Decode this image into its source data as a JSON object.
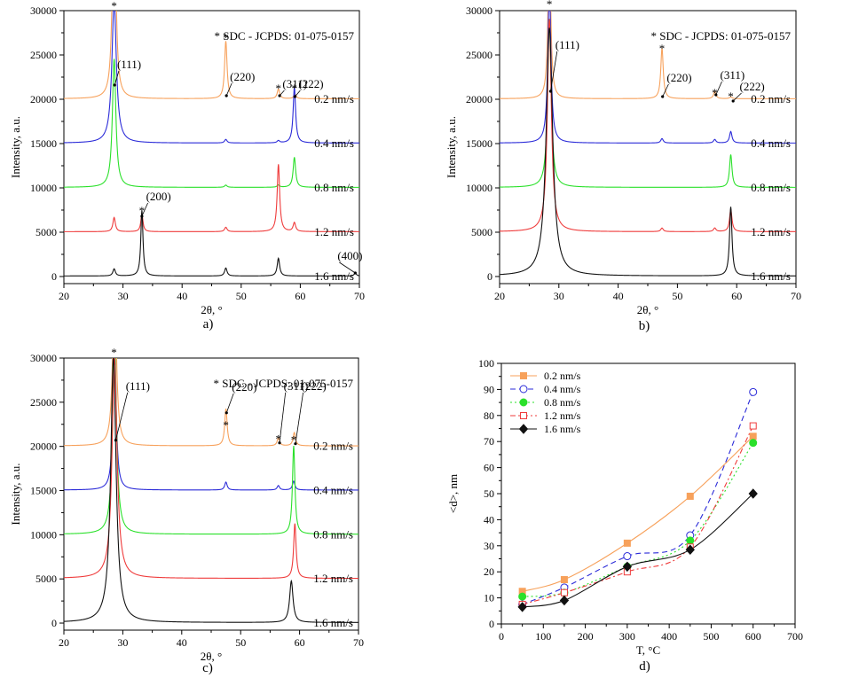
{
  "figure": {
    "panels": [
      "a)",
      "b)",
      "c)",
      "d)"
    ]
  },
  "chart_data": [
    {
      "panel": "a)",
      "type": "line",
      "xlabel": "2θ, °",
      "ylabel": "Intensity, a.u.",
      "xlim": [
        20,
        70
      ],
      "ylim": [
        -800,
        30000
      ],
      "xticks": [
        20,
        30,
        40,
        50,
        60,
        70
      ],
      "yticks": [
        0,
        5000,
        10000,
        15000,
        20000,
        25000,
        30000
      ],
      "annotation": "* SDC - JCPDS: 01-075-0157",
      "labels": [
        {
          "text": "(111)",
          "at": [
            29.0,
            23500
          ],
          "tip": [
            28.6,
            21600
          ]
        },
        {
          "text": "(220)",
          "at": [
            48.1,
            22100
          ],
          "tip": [
            47.5,
            20400
          ]
        },
        {
          "text": "(311)",
          "at": [
            57.0,
            21300
          ],
          "tip": [
            56.5,
            20400
          ]
        },
        {
          "text": "(222)",
          "at": [
            59.7,
            21300
          ],
          "tip": [
            59.1,
            20300
          ]
        },
        {
          "text": "(200)",
          "at": [
            33.9,
            8600
          ],
          "tip": [
            33.2,
            6800
          ]
        },
        {
          "text": "(400)",
          "at": [
            66.3,
            1900
          ],
          "tip": [
            69.3,
            400
          ]
        }
      ],
      "stars": [
        [
          28.5,
          30500
        ],
        [
          47.4,
          26900
        ],
        [
          56.3,
          21200
        ],
        [
          59.0,
          21200
        ],
        [
          33.2,
          7400
        ]
      ],
      "series": [
        {
          "name": "0.2 nm/s",
          "color": "#f7a15b",
          "offset": 20000,
          "peaks": [
            [
              28.5,
              28000,
              0.3
            ],
            [
              47.4,
              6500,
              0.25
            ],
            [
              56.3,
              1100,
              0.25
            ],
            [
              59.1,
              500,
              0.25
            ]
          ]
        },
        {
          "name": "0.4 nm/s",
          "color": "#2a2ad8",
          "offset": 15000,
          "peaks": [
            [
              28.5,
              16000,
              0.45
            ],
            [
              47.4,
              400,
              0.25
            ],
            [
              56.3,
              250,
              0.25
            ],
            [
              59.0,
              6300,
              0.25
            ]
          ]
        },
        {
          "name": "0.8 nm/s",
          "color": "#2ae02a",
          "offset": 10000,
          "peaks": [
            [
              28.5,
              14500,
              0.35
            ],
            [
              47.4,
              250,
              0.25
            ],
            [
              56.3,
              250,
              0.25
            ],
            [
              59.0,
              3400,
              0.25
            ]
          ]
        },
        {
          "name": "1.2 nm/s",
          "color": "#ef3b3b",
          "offset": 5000,
          "peaks": [
            [
              28.5,
              1600,
              0.25
            ],
            [
              33.2,
              2000,
              0.22
            ],
            [
              47.4,
              500,
              0.25
            ],
            [
              56.3,
              7600,
              0.25
            ],
            [
              59.0,
              1000,
              0.25
            ]
          ]
        },
        {
          "name": "1.6 nm/s",
          "color": "#111111",
          "offset": 0,
          "peaks": [
            [
              28.5,
              800,
              0.25
            ],
            [
              33.2,
              7400,
              0.22
            ],
            [
              47.4,
              900,
              0.25
            ],
            [
              56.3,
              2000,
              0.25
            ],
            [
              69.3,
              300,
              0.25
            ]
          ]
        }
      ]
    },
    {
      "panel": "b)",
      "type": "line",
      "xlabel": "2θ, °",
      "ylabel": "Intensity, a.u.",
      "xlim": [
        20,
        70
      ],
      "ylim": [
        -800,
        30000
      ],
      "xticks": [
        20,
        30,
        40,
        50,
        60,
        70
      ],
      "yticks": [
        0,
        5000,
        10000,
        15000,
        20000,
        25000,
        30000
      ],
      "annotation": "* SDC - JCPDS: 01-075-0157",
      "labels": [
        {
          "text": "(111)",
          "at": [
            29.4,
            25700
          ],
          "tip": [
            28.6,
            20900
          ]
        },
        {
          "text": "(220)",
          "at": [
            48.2,
            22000
          ],
          "tip": [
            47.5,
            20300
          ]
        },
        {
          "text": "(311)",
          "at": [
            57.2,
            22300
          ],
          "tip": [
            56.5,
            20500
          ]
        },
        {
          "text": "(222)",
          "at": [
            60.5,
            21000
          ],
          "tip": [
            59.4,
            19800
          ]
        }
      ],
      "stars": [
        [
          28.4,
          30700
        ],
        [
          47.4,
          25700
        ],
        [
          56.3,
          20700
        ],
        [
          59.0,
          20300
        ]
      ],
      "series": [
        {
          "name": "0.2 nm/s",
          "color": "#f7a15b",
          "offset": 20000,
          "peaks": [
            [
              28.4,
              20000,
              0.25
            ],
            [
              47.4,
              5700,
              0.25
            ],
            [
              56.3,
              800,
              0.25
            ],
            [
              59.0,
              200,
              0.25
            ]
          ]
        },
        {
          "name": "0.4 nm/s",
          "color": "#2a2ad8",
          "offset": 15000,
          "peaks": [
            [
              28.4,
              18000,
              0.3
            ],
            [
              47.4,
              500,
              0.25
            ],
            [
              56.3,
              400,
              0.25
            ],
            [
              59.0,
              1300,
              0.25
            ]
          ]
        },
        {
          "name": "0.8 nm/s",
          "color": "#2ae02a",
          "offset": 10000,
          "peaks": [
            [
              28.4,
              19000,
              0.35
            ],
            [
              59.0,
              3700,
              0.25
            ]
          ]
        },
        {
          "name": "1.2 nm/s",
          "color": "#ef3b3b",
          "offset": 5000,
          "peaks": [
            [
              28.4,
              24000,
              0.4
            ],
            [
              47.4,
              400,
              0.25
            ],
            [
              56.3,
              400,
              0.25
            ],
            [
              59.0,
              2500,
              0.25
            ]
          ]
        },
        {
          "name": "1.6 nm/s",
          "color": "#111111",
          "offset": 0,
          "peaks": [
            [
              28.4,
              28000,
              0.65
            ],
            [
              59.0,
              7800,
              0.25
            ]
          ]
        }
      ]
    },
    {
      "panel": "c)",
      "type": "line",
      "xlabel": "2θ, °",
      "ylabel": "Intensity, a.u.",
      "xlim": [
        20,
        70
      ],
      "ylim": [
        -800,
        30000
      ],
      "xticks": [
        20,
        30,
        40,
        50,
        60,
        70
      ],
      "yticks": [
        0,
        5000,
        10000,
        15000,
        20000,
        25000,
        30000
      ],
      "annotation": "* SDC - JCPDS: 01-075-0157",
      "labels": [
        {
          "text": "(111)",
          "at": [
            30.5,
            26400
          ],
          "tip": [
            28.8,
            20700
          ]
        },
        {
          "text": "(220)",
          "at": [
            48.5,
            26300
          ],
          "tip": [
            47.6,
            23800
          ]
        },
        {
          "text": "(311)",
          "at": [
            57.3,
            26400
          ],
          "tip": [
            56.6,
            20400
          ]
        },
        {
          "text": "(222)",
          "at": [
            60.3,
            26400
          ],
          "tip": [
            59.3,
            20300
          ]
        }
      ],
      "stars": [
        [
          28.5,
          30600
        ],
        [
          47.5,
          22400
        ],
        [
          56.4,
          20800
        ],
        [
          59.0,
          20700
        ]
      ],
      "series": [
        {
          "name": "0.2 nm/s",
          "color": "#f7a15b",
          "offset": 20000,
          "peaks": [
            [
              28.6,
              20000,
              0.35
            ],
            [
              47.5,
              4200,
              0.25
            ],
            [
              56.4,
              900,
              0.25
            ],
            [
              59.1,
              1500,
              0.25
            ]
          ]
        },
        {
          "name": "0.4 nm/s",
          "color": "#2a2ad8",
          "offset": 15000,
          "peaks": [
            [
              28.6,
              18000,
              0.3
            ],
            [
              47.5,
              900,
              0.25
            ],
            [
              56.4,
              500,
              0.25
            ],
            [
              59.0,
              1000,
              0.25
            ]
          ]
        },
        {
          "name": "0.8 nm/s",
          "color": "#2ae02a",
          "offset": 10000,
          "peaks": [
            [
              28.6,
              22000,
              0.4
            ],
            [
              59.0,
              10000,
              0.25
            ]
          ]
        },
        {
          "name": "1.2 nm/s",
          "color": "#ef3b3b",
          "offset": 5000,
          "peaks": [
            [
              28.6,
              25000,
              0.5
            ],
            [
              59.2,
              6200,
              0.25
            ]
          ]
        },
        {
          "name": "1.6 nm/s",
          "color": "#111111",
          "offset": 0,
          "peaks": [
            [
              28.4,
              30000,
              0.55
            ],
            [
              58.6,
              4700,
              0.35
            ]
          ]
        }
      ]
    },
    {
      "panel": "d)",
      "type": "line",
      "xlabel": "T, °C",
      "ylabel": "<d>, nm",
      "xlim": [
        0,
        700
      ],
      "ylim": [
        0,
        100
      ],
      "xticks": [
        0,
        100,
        200,
        300,
        400,
        500,
        600,
        700
      ],
      "yticks": [
        0,
        10,
        20,
        30,
        40,
        50,
        60,
        70,
        80,
        90,
        100
      ],
      "legend": "top-left",
      "x": [
        50,
        150,
        300,
        450,
        600
      ],
      "series": [
        {
          "name": "0.2 nm/s",
          "color": "#f7a15b",
          "marker": "square-filled",
          "dash": "",
          "values": [
            12.5,
            17,
            31,
            49,
            72
          ]
        },
        {
          "name": "0.4 nm/s",
          "color": "#2a2ad8",
          "marker": "circle-open",
          "dash": "6,4",
          "values": [
            7.5,
            14,
            26,
            34,
            89
          ]
        },
        {
          "name": "0.8 nm/s",
          "color": "#2ae02a",
          "marker": "circle-filled",
          "dash": "2,3",
          "values": [
            10.5,
            12,
            22,
            32,
            69.5
          ]
        },
        {
          "name": "1.2 nm/s",
          "color": "#ef3b3b",
          "marker": "square-open",
          "dash": "6,3,2,3",
          "values": [
            7.5,
            12,
            20,
            29.5,
            76
          ]
        },
        {
          "name": "1.6 nm/s",
          "color": "#111111",
          "marker": "diamond-filled",
          "dash": "",
          "values": [
            6.5,
            9,
            22,
            28.5,
            50
          ]
        }
      ]
    }
  ]
}
